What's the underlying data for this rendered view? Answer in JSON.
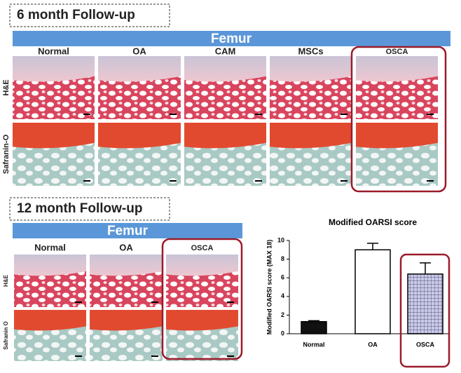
{
  "panel_6m": {
    "title": "6 month Follow-up",
    "bone": "Femur",
    "columns": [
      "Normal",
      "OA",
      "CAM",
      "MSCs",
      "OSCA"
    ],
    "rows": [
      "H&E",
      "Safranin-O"
    ]
  },
  "panel_12m": {
    "title": "12 month Follow-up",
    "bone": "Femur",
    "columns": [
      "Normal",
      "OA",
      "OSCA"
    ],
    "rows": [
      "H&E",
      "Safranin O"
    ]
  },
  "chart_data": {
    "type": "bar",
    "title": "Modified OARSI score",
    "y_label": "Modified OARSI score (MAX 18)",
    "categories": [
      "Normal",
      "OA",
      "OSCA"
    ],
    "values": [
      1.3,
      9.0,
      6.4
    ],
    "errors": [
      0.1,
      0.7,
      1.2
    ],
    "colors": [
      "#111111",
      "#ffffff",
      "#c9c9ee"
    ],
    "hatch": [
      false,
      false,
      true
    ],
    "ylim": [
      0,
      10
    ],
    "yticks": [
      0,
      2,
      4,
      6,
      8,
      10
    ]
  }
}
